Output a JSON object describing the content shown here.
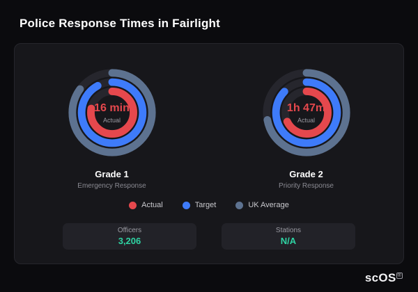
{
  "page": {
    "title": "Police Response Times in Fairlight"
  },
  "watermark": {
    "text": "scOS",
    "reg": "®"
  },
  "stats": [
    {
      "label": "Officers",
      "value": "3,206"
    },
    {
      "label": "Stations",
      "value": "N/A"
    }
  ],
  "chart_data": {
    "type": "radial-gauge",
    "track_color": "#26262d",
    "legend": [
      {
        "label": "Actual",
        "color": "#e5484d"
      },
      {
        "label": "Target",
        "color": "#3e7bfa"
      },
      {
        "label": "UK Average",
        "color": "#5d7290"
      }
    ],
    "gauges": [
      {
        "name": "Grade 1",
        "sublabel": "Emergency Response",
        "value": "16 min",
        "value_label": "Actual",
        "rings": [
          {
            "series": "UK Average",
            "color": "#5d7290",
            "fraction": 0.85
          },
          {
            "series": "Target",
            "color": "#3e7bfa",
            "fraction": 0.92
          },
          {
            "series": "Actual",
            "color": "#e5484d",
            "fraction": 0.78
          }
        ]
      },
      {
        "name": "Grade 2",
        "sublabel": "Priority Response",
        "value": "1h 47m",
        "value_label": "Actual",
        "rings": [
          {
            "series": "UK Average",
            "color": "#5d7290",
            "fraction": 0.72
          },
          {
            "series": "Target",
            "color": "#3e7bfa",
            "fraction": 0.87
          },
          {
            "series": "Actual",
            "color": "#e5484d",
            "fraction": 0.68
          }
        ]
      }
    ]
  }
}
